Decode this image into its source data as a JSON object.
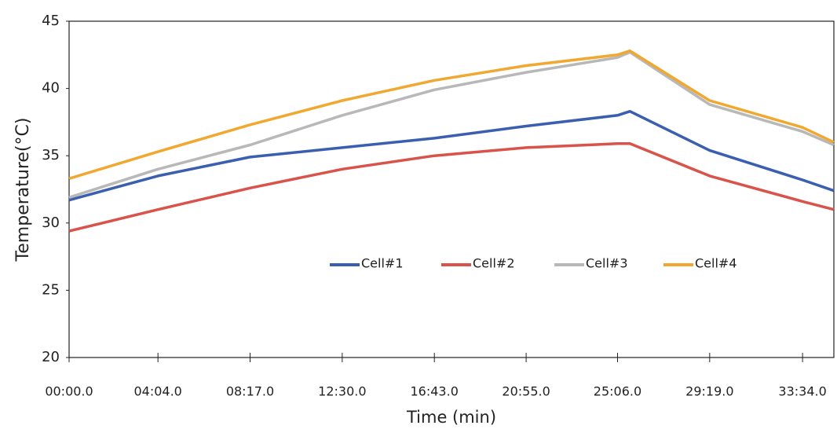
{
  "chart_data": {
    "type": "line",
    "x_label": "Time (min)",
    "y_label": "Temperature(°C)",
    "x": [
      0,
      244,
      497,
      750,
      1003,
      1255,
      1506,
      1540,
      1759,
      2014,
      2100
    ],
    "series": [
      {
        "name": "Cell#1",
        "color": "#3a5fb0",
        "values": [
          31.7,
          33.5,
          34.9,
          35.6,
          36.3,
          37.2,
          38.0,
          38.3,
          35.4,
          33.2,
          32.4
        ]
      },
      {
        "name": "Cell#2",
        "color": "#d9534a",
        "values": [
          29.4,
          31.0,
          32.6,
          34.0,
          35.0,
          35.6,
          35.9,
          35.9,
          33.5,
          31.6,
          31.0
        ]
      },
      {
        "name": "Cell#3",
        "color": "#b8b8b8",
        "values": [
          31.9,
          34.0,
          35.8,
          38.0,
          39.9,
          41.2,
          42.3,
          42.7,
          38.8,
          36.8,
          35.8
        ]
      },
      {
        "name": "Cell#4",
        "color": "#f0a830",
        "values": [
          33.3,
          35.3,
          37.3,
          39.1,
          40.6,
          41.7,
          42.5,
          42.8,
          39.1,
          37.1,
          36.0
        ]
      }
    ],
    "xlim": [
      0,
      2100
    ],
    "xticks": [
      {
        "value": 0,
        "label": "00:00.0"
      },
      {
        "value": 244,
        "label": "04:04.0"
      },
      {
        "value": 497,
        "label": "08:17.0"
      },
      {
        "value": 750,
        "label": "12:30.0"
      },
      {
        "value": 1003,
        "label": "16:43.0"
      },
      {
        "value": 1255,
        "label": "20:55.0"
      },
      {
        "value": 1506,
        "label": "25:06.0"
      },
      {
        "value": 1759,
        "label": "29:19.0"
      },
      {
        "value": 2014,
        "label": "33:34.0"
      }
    ],
    "ylim": [
      20,
      45
    ],
    "yticks": [
      20,
      25,
      30,
      35,
      40,
      45
    ],
    "grid": false
  }
}
